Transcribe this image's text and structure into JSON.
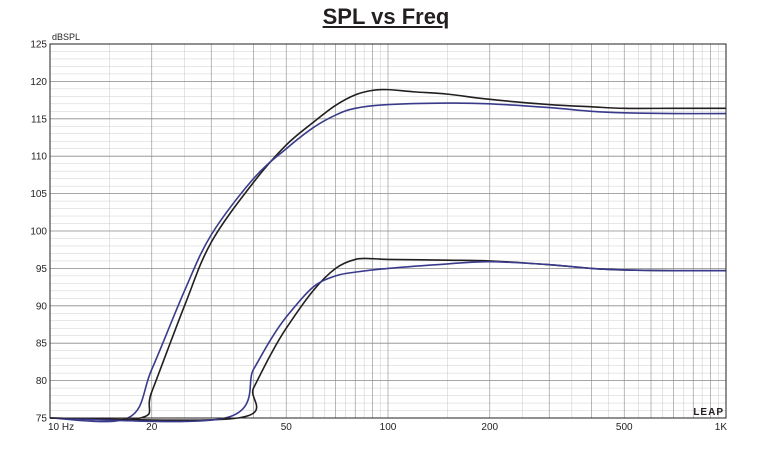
{
  "chart_data": {
    "type": "line",
    "title": "SPL vs Freq",
    "xlabel": "",
    "ylabel": "dBSPL",
    "xscale": "log",
    "xlim": [
      10,
      1000
    ],
    "ylim": [
      75,
      125
    ],
    "grid": true,
    "y_ticks": [
      75,
      80,
      85,
      90,
      95,
      100,
      105,
      110,
      115,
      120,
      125
    ],
    "x_tick_labels": [
      {
        "value": 10,
        "label": "10  Hz"
      },
      {
        "value": 20,
        "label": "20"
      },
      {
        "value": 50,
        "label": "50"
      },
      {
        "value": 100,
        "label": "100"
      },
      {
        "value": 200,
        "label": "200"
      },
      {
        "value": 500,
        "label": "500"
      },
      {
        "value": 1000,
        "label": "1K"
      }
    ],
    "watermark": "LEAP",
    "series": [
      {
        "color": "#231f20",
        "points": [
          [
            10,
            75
          ],
          [
            18.5,
            75
          ],
          [
            20,
            78.5
          ],
          [
            25,
            90
          ],
          [
            30,
            98.5
          ],
          [
            40,
            106.5
          ],
          [
            50,
            111.5
          ],
          [
            60,
            114.5
          ],
          [
            70,
            116.8
          ],
          [
            80,
            118.2
          ],
          [
            90,
            118.8
          ],
          [
            100,
            118.9
          ],
          [
            120,
            118.6
          ],
          [
            150,
            118.3
          ],
          [
            200,
            117.6
          ],
          [
            300,
            116.9
          ],
          [
            400,
            116.6
          ],
          [
            500,
            116.4
          ],
          [
            700,
            116.4
          ],
          [
            1000,
            116.4
          ]
        ]
      },
      {
        "color": "#3a3a8c",
        "points": [
          [
            10,
            75
          ],
          [
            17,
            75
          ],
          [
            20,
            81.5
          ],
          [
            25,
            92
          ],
          [
            30,
            99.5
          ],
          [
            40,
            107
          ],
          [
            50,
            111
          ],
          [
            60,
            113.8
          ],
          [
            70,
            115.5
          ],
          [
            80,
            116.4
          ],
          [
            100,
            116.9
          ],
          [
            150,
            117.1
          ],
          [
            200,
            117
          ],
          [
            300,
            116.5
          ],
          [
            400,
            116
          ],
          [
            500,
            115.8
          ],
          [
            700,
            115.7
          ],
          [
            1000,
            115.7
          ]
        ]
      },
      {
        "color": "#231f20",
        "points": [
          [
            10,
            75
          ],
          [
            36,
            75
          ],
          [
            40,
            79
          ],
          [
            45,
            83.5
          ],
          [
            50,
            87
          ],
          [
            60,
            92
          ],
          [
            70,
            95
          ],
          [
            80,
            96.2
          ],
          [
            90,
            96.3
          ],
          [
            100,
            96.2
          ],
          [
            150,
            96.1
          ],
          [
            200,
            96
          ],
          [
            300,
            95.5
          ],
          [
            400,
            95
          ],
          [
            500,
            94.8
          ],
          [
            700,
            94.7
          ],
          [
            1000,
            94.7
          ]
        ]
      },
      {
        "color": "#3a3a8c",
        "points": [
          [
            10,
            75
          ],
          [
            33,
            75
          ],
          [
            40,
            81.5
          ],
          [
            45,
            85.5
          ],
          [
            50,
            88.5
          ],
          [
            60,
            92.5
          ],
          [
            70,
            94
          ],
          [
            80,
            94.5
          ],
          [
            100,
            95
          ],
          [
            150,
            95.6
          ],
          [
            200,
            95.9
          ],
          [
            300,
            95.5
          ],
          [
            400,
            95
          ],
          [
            500,
            94.8
          ],
          [
            700,
            94.7
          ],
          [
            1000,
            94.7
          ]
        ]
      }
    ]
  }
}
